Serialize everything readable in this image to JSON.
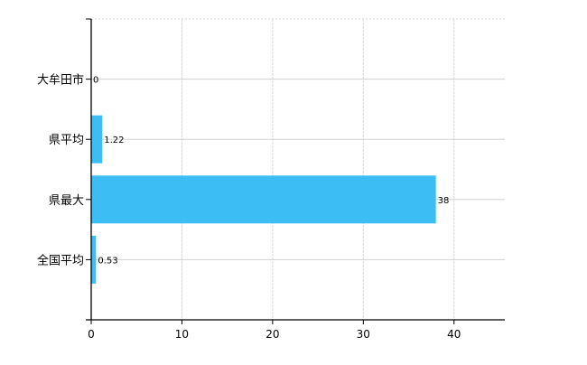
{
  "chart_data": {
    "type": "bar",
    "orientation": "horizontal",
    "categories": [
      "大牟田市",
      "県平均",
      "県最大",
      "全国平均"
    ],
    "values": [
      0,
      1.22,
      38,
      0.53
    ],
    "data_labels": [
      "0",
      "1.22",
      "38",
      "0.53"
    ],
    "title": "",
    "xlabel": "",
    "ylabel": "",
    "xlim": [
      0,
      45.6
    ],
    "xticks": [
      0,
      10,
      20,
      30,
      40
    ],
    "grid": true,
    "bar_color": "#3cbef5"
  }
}
